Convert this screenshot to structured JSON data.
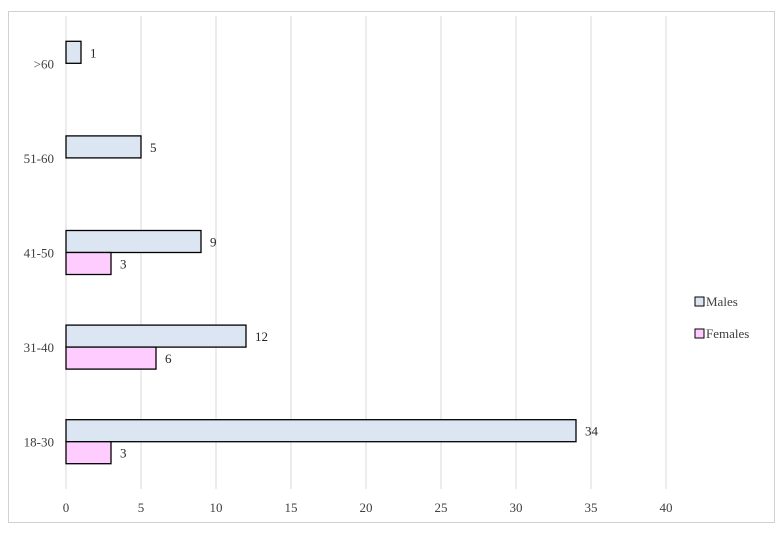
{
  "chart_data": {
    "type": "bar",
    "orientation": "horizontal",
    "title": "",
    "xlabel": "",
    "ylabel": "",
    "categories": [
      "18-30",
      "31-40",
      "41-50",
      "51-60",
      ">60"
    ],
    "series": [
      {
        "name": "Males",
        "values": [
          34,
          12,
          9,
          5,
          1
        ],
        "color": "#dce6f2"
      },
      {
        "name": "Females",
        "values": [
          3,
          6,
          3,
          null,
          null
        ],
        "color": "#ffccff"
      }
    ],
    "xlim": [
      0,
      40
    ],
    "xticks": [
      0,
      5,
      10,
      15,
      20,
      25,
      30,
      35,
      40
    ],
    "grid": true,
    "legend_position": "right",
    "bar_border_color": "#000000",
    "grid_color": "#d9d9d9"
  }
}
